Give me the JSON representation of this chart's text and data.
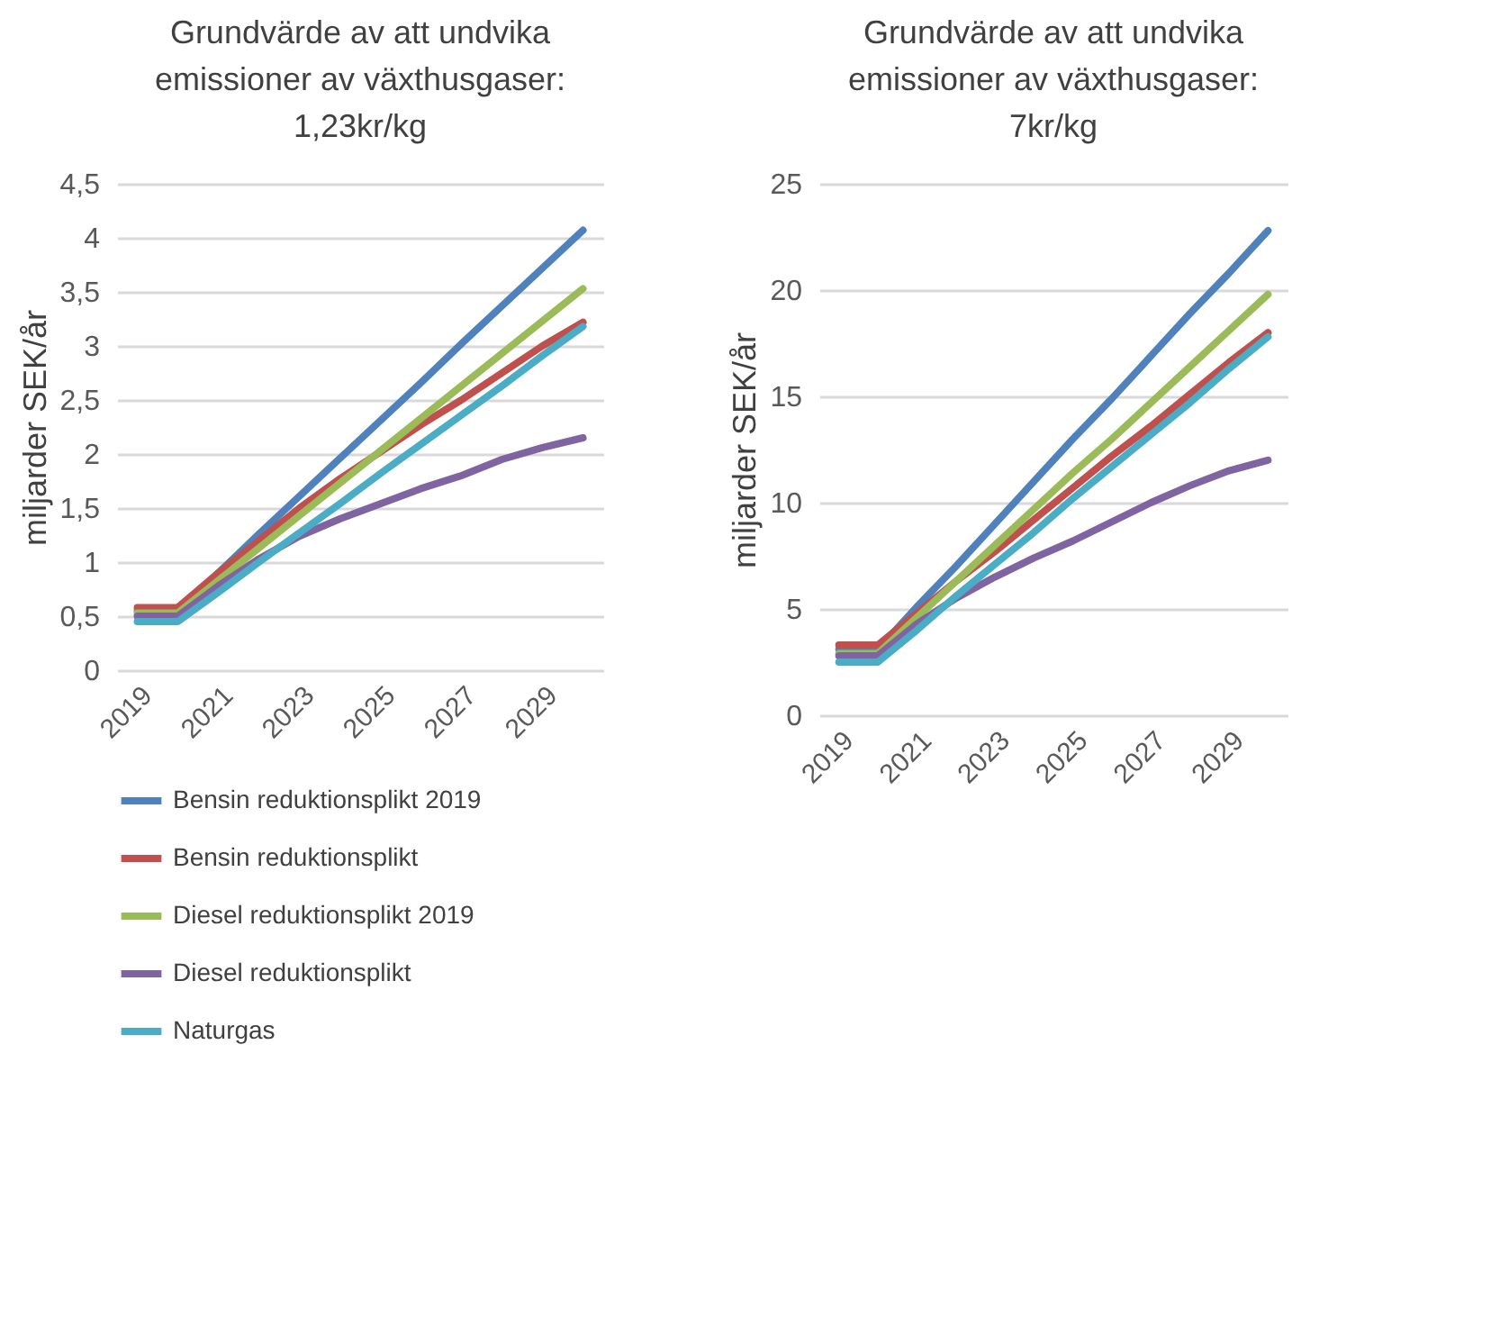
{
  "chart_data": [
    {
      "type": "line",
      "title": "Grundvärde av att undvika emissioner av växthusgaser: 1,23kr/kg",
      "ylabel": "miljarder SEK/år",
      "categories": [
        "2019",
        null,
        "2021",
        null,
        "2023",
        null,
        "2025",
        null,
        "2027",
        null,
        "2029",
        null
      ],
      "ylim": [
        0,
        4.5
      ],
      "yticks": [
        0,
        {
          "value": 0.5,
          "label": "0,5"
        },
        1,
        {
          "value": 1.5,
          "label": "1,5"
        },
        2,
        {
          "value": 2.5,
          "label": "2,5"
        },
        3,
        {
          "value": 3.5,
          "label": "3,5"
        },
        4,
        {
          "value": 4.5,
          "label": "4,5"
        }
      ],
      "grid": "y",
      "legend": "bottom",
      "line_style": "solid",
      "marker": "none",
      "series": [
        {
          "name": "Bensin reduktionsplikt 2019",
          "color": "#4f81bd",
          "values": [
            0.55,
            0.55,
            0.9,
            1.26,
            1.61,
            1.96,
            2.31,
            2.66,
            3.02,
            3.37,
            3.72,
            4.07
          ]
        },
        {
          "name": "Bensin reduktionsplikt",
          "color": "#c0504d",
          "values": [
            0.58,
            0.58,
            0.9,
            1.2,
            1.5,
            1.77,
            2.02,
            2.27,
            2.5,
            2.75,
            3.0,
            3.22
          ]
        },
        {
          "name": "Diesel reduktionsplikt 2019",
          "color": "#9bbb59",
          "values": [
            0.53,
            0.53,
            0.83,
            1.13,
            1.43,
            1.73,
            2.03,
            2.33,
            2.63,
            2.93,
            3.23,
            3.53
          ]
        },
        {
          "name": "Diesel reduktionsplikt",
          "color": "#8064a2",
          "values": [
            0.5,
            0.5,
            0.78,
            1.03,
            1.24,
            1.4,
            1.54,
            1.68,
            1.8,
            1.95,
            2.06,
            2.15
          ]
        },
        {
          "name": "Naturgas",
          "color": "#4bacc6",
          "values": [
            0.45,
            0.45,
            0.72,
            1.0,
            1.27,
            1.54,
            1.82,
            2.09,
            2.36,
            2.63,
            2.91,
            3.18
          ]
        }
      ]
    },
    {
      "type": "line",
      "title": "Grundvärde av att undvika emissioner av växthusgaser: 7kr/kg",
      "ylabel": "miljarder SEK/år",
      "categories": [
        "2019",
        null,
        "2021",
        null,
        "2023",
        null,
        "2025",
        null,
        "2027",
        null,
        "2029",
        null
      ],
      "ylim": [
        0,
        25
      ],
      "yticks": [
        0,
        5,
        10,
        15,
        20,
        25
      ],
      "grid": "y",
      "line_style": "solid",
      "marker": "none",
      "series": [
        {
          "color": "#4f81bd",
          "values": [
            3.1,
            3.1,
            5.1,
            7.0,
            9.0,
            11.0,
            13.0,
            14.9,
            16.9,
            18.9,
            20.8,
            22.8
          ]
        },
        {
          "color": "#c0504d",
          "values": [
            3.3,
            3.3,
            4.8,
            6.3,
            7.7,
            9.2,
            10.7,
            12.2,
            13.6,
            15.1,
            16.6,
            18.0
          ]
        },
        {
          "color": "#9bbb59",
          "values": [
            2.9,
            2.9,
            4.6,
            6.3,
            8.0,
            9.7,
            11.4,
            13.0,
            14.7,
            16.4,
            18.1,
            19.8
          ]
        },
        {
          "color": "#8064a2",
          "values": [
            2.8,
            2.8,
            4.3,
            5.5,
            6.5,
            7.4,
            8.2,
            9.1,
            10.0,
            10.8,
            11.5,
            12.0
          ]
        },
        {
          "color": "#4bacc6",
          "values": [
            2.5,
            2.5,
            4.0,
            5.6,
            7.1,
            8.6,
            10.2,
            11.7,
            13.2,
            14.7,
            16.3,
            17.8
          ]
        }
      ]
    }
  ]
}
